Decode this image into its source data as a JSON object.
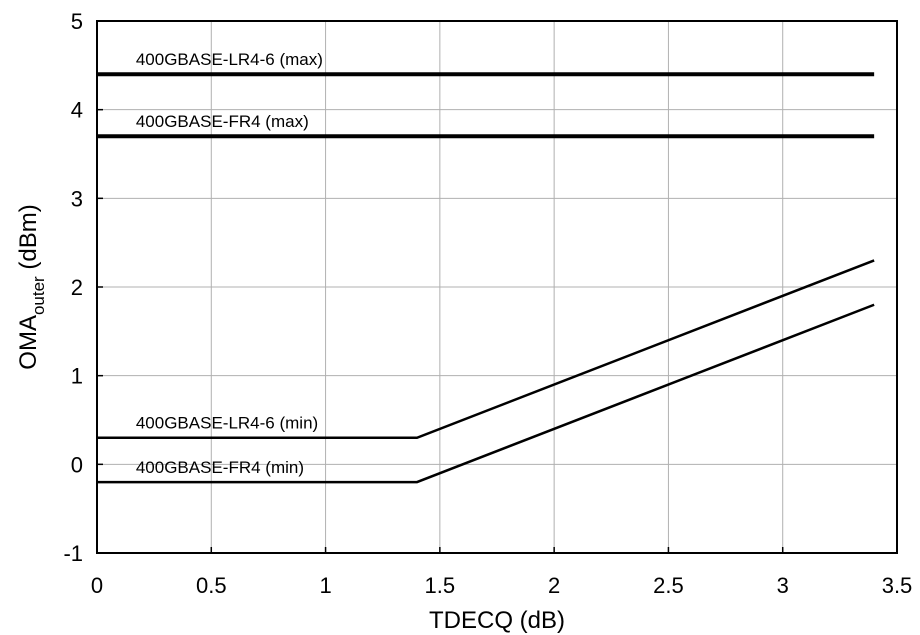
{
  "chart_data": {
    "type": "line",
    "title": "",
    "xlabel": "TDECQ (dB)",
    "ylabel": {
      "main": "OMA",
      "subscript": "outer",
      "unit": " (dBm)"
    },
    "xlim": [
      0,
      3.5
    ],
    "ylim": [
      -1,
      5
    ],
    "grid": true,
    "x_ticks": [
      0,
      0.5,
      1,
      1.5,
      2,
      2.5,
      3,
      3.5
    ],
    "x_tick_labels": [
      "0",
      "0.5",
      "1",
      "1.5",
      "2",
      "2.5",
      "3",
      "3.5"
    ],
    "y_ticks": [
      -1,
      0,
      1,
      2,
      3,
      4,
      5
    ],
    "y_tick_labels": [
      "-1",
      "0",
      "1",
      "2",
      "3",
      "4",
      "5"
    ],
    "series": [
      {
        "name": "400GBASE-LR4-6 (max)",
        "x": [
          0,
          3.4
        ],
        "y": [
          4.4,
          4.4
        ],
        "label_at": [
          0.17,
          4.57
        ],
        "weight": "bold"
      },
      {
        "name": "400GBASE-FR4 (max)",
        "x": [
          0,
          3.4
        ],
        "y": [
          3.7,
          3.7
        ],
        "label_at": [
          0.17,
          3.87
        ],
        "weight": "bold"
      },
      {
        "name": "400GBASE-LR4-6 (min)",
        "x": [
          0,
          1.4,
          3.4
        ],
        "y": [
          0.3,
          0.3,
          2.3
        ],
        "label_at": [
          0.17,
          0.47
        ],
        "weight": "normal"
      },
      {
        "name": "400GBASE-FR4 (min)",
        "x": [
          0,
          1.4,
          3.4
        ],
        "y": [
          -0.2,
          -0.2,
          1.8
        ],
        "label_at": [
          0.17,
          -0.03
        ],
        "weight": "normal"
      }
    ],
    "line_color": "#000000",
    "grid_color": "#b0b0b0"
  }
}
